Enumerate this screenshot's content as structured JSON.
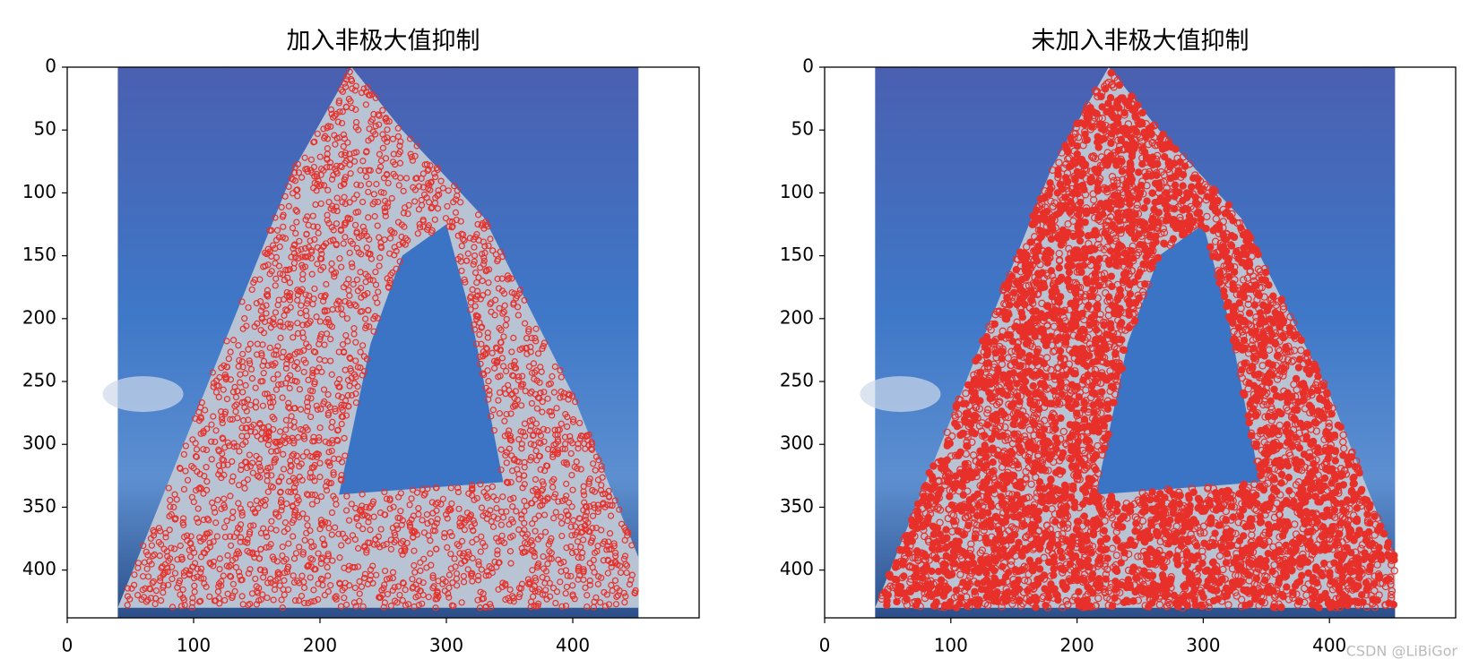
{
  "chart_data": [
    {
      "type": "image",
      "title": "加入非极大值抑制",
      "xlim": [
        0,
        500
      ],
      "ylim": [
        438,
        0
      ],
      "xticks": [
        0,
        100,
        200,
        300,
        400
      ],
      "yticks": [
        0,
        50,
        100,
        150,
        200,
        250,
        300,
        350,
        400
      ]
    },
    {
      "type": "image",
      "title": "未加入非极大值抑制",
      "xlim": [
        0,
        500
      ],
      "ylim": [
        438,
        0
      ],
      "xticks": [
        0,
        100,
        200,
        300,
        400
      ],
      "yticks": [
        0,
        50,
        100,
        150,
        200,
        250,
        300,
        350,
        400
      ]
    }
  ],
  "watermark": "CSDN @LiBiGor"
}
